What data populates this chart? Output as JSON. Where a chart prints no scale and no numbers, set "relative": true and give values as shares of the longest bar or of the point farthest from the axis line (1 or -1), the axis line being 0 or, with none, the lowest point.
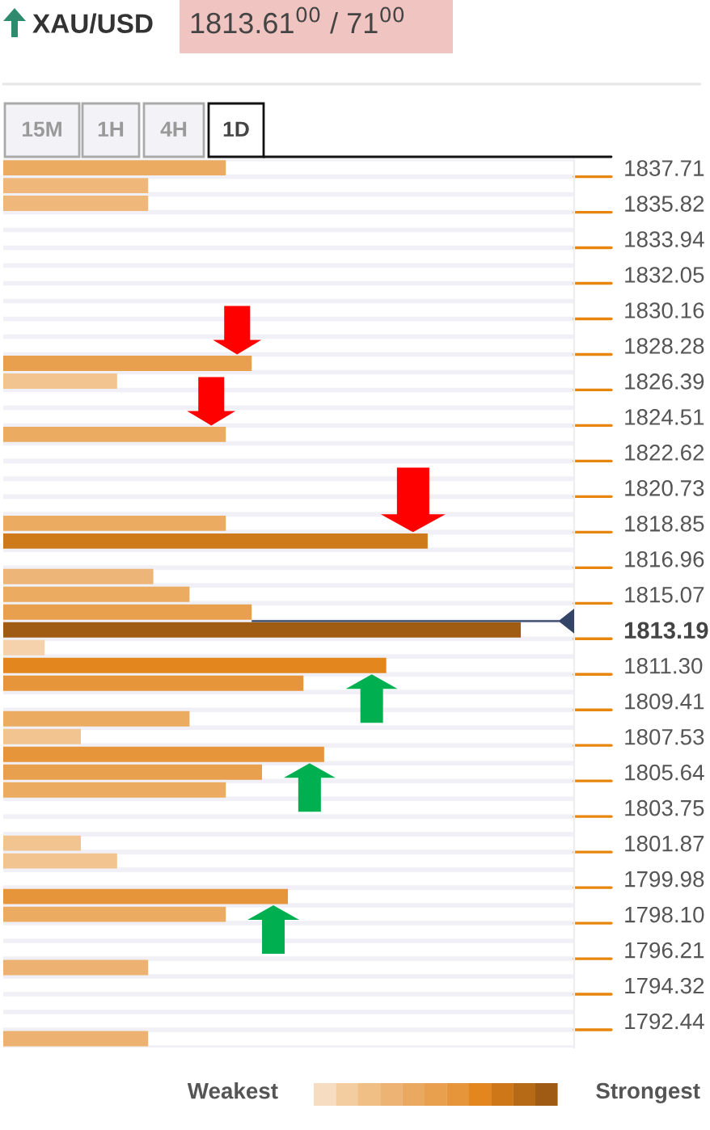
{
  "chart_data": {
    "type": "bar",
    "orientation": "horizontal",
    "relative": true,
    "title": "XAU/USD",
    "subtitle": "1813.61$^{00}$ / 71$^{00}$",
    "categories": [
      "1837.71",
      null,
      "1835.82",
      null,
      "1833.94",
      null,
      "1832.05",
      null,
      "1830.16",
      null,
      "1828.28",
      null,
      "1826.39",
      null,
      "1824.51",
      null,
      "1822.62",
      null,
      "1820.73",
      null,
      "1818.85",
      null,
      "1816.96",
      null,
      "1815.07",
      null,
      "1813.19",
      null,
      "1811.30",
      null,
      "1809.41",
      null,
      "1807.53",
      null,
      "1805.64",
      null,
      "1803.75",
      null,
      "1801.87",
      null,
      "1799.98",
      null,
      "1798.10",
      null,
      "1796.21",
      null,
      "1794.32",
      null,
      "1792.44",
      null
    ],
    "values": [
      0.43,
      0.28,
      0.28,
      null,
      null,
      null,
      null,
      null,
      null,
      null,
      null,
      0.48,
      0.22,
      null,
      null,
      0.43,
      null,
      null,
      null,
      null,
      0.43,
      0.82,
      null,
      0.29,
      0.36,
      0.48,
      1,
      0.08,
      0.74,
      0.58,
      null,
      0.36,
      0.15,
      0.62,
      0.5,
      0.43,
      null,
      null,
      0.15,
      0.22,
      null,
      0.55,
      0.43,
      null,
      null,
      0.28,
      null,
      null,
      null,
      0.28
    ],
    "colors": [
      "#ebab60",
      "#efb87a",
      "#efb87a",
      null,
      null,
      null,
      null,
      null,
      null,
      null,
      null,
      "#e8a04e",
      "#f2c48f",
      null,
      null,
      "#ebab60",
      null,
      null,
      null,
      null,
      "#ebab60",
      "#ce7a1a",
      null,
      "#edb577",
      "#ebab60",
      "#e8a04e",
      "#a05c13",
      "#f5d2ab",
      "#e2861d",
      "#e6953a",
      null,
      "#ebab60",
      "#f2c48f",
      "#e6953a",
      "#e8a04e",
      "#ebab60",
      null,
      null,
      "#f2c48f",
      "#f2c48f",
      null,
      "#e6953a",
      "#ebab60",
      null,
      null,
      "#edb272",
      null,
      null,
      null,
      "#edb272"
    ],
    "grid": true,
    "annotations": [
      "15M",
      "1H",
      "4H",
      "1D",
      "Weakest",
      "Strongest"
    ]
  }
}
